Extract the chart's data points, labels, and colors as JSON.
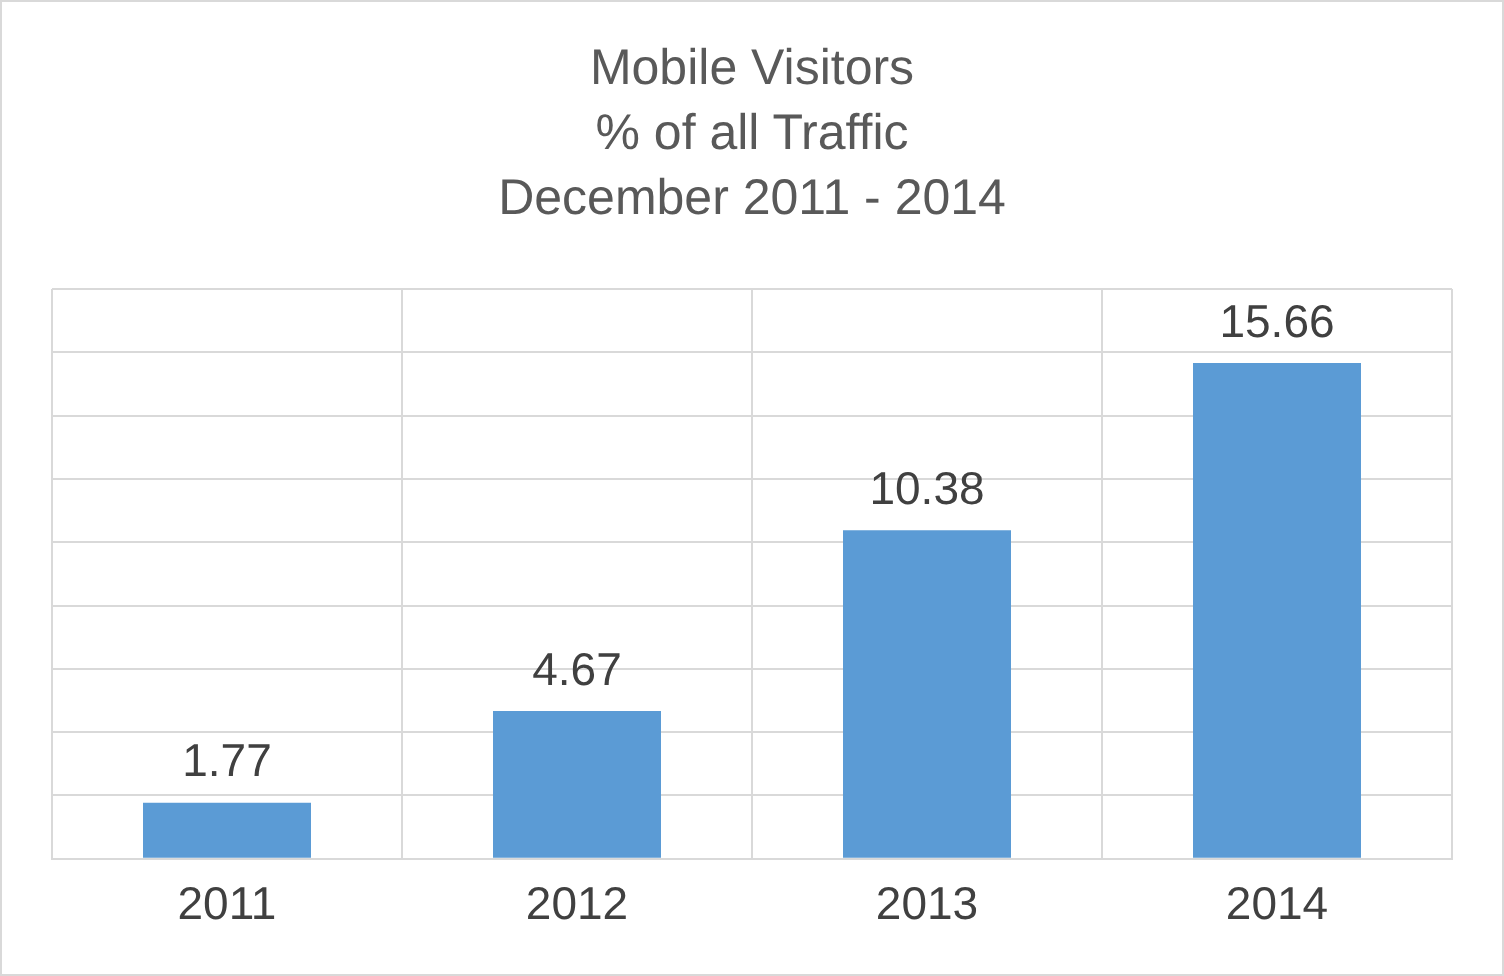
{
  "chart_data": {
    "type": "bar",
    "title": "Mobile Visitors\n% of all Traffic\nDecember 2011 - 2014",
    "categories": [
      "2011",
      "2012",
      "2013",
      "2014"
    ],
    "values": [
      1.77,
      4.67,
      10.38,
      15.66
    ],
    "color": "#5b9bd5",
    "ylim": [
      0,
      18
    ],
    "yticks": [
      {
        "value": 0,
        "label": null
      },
      {
        "value": 2,
        "label": null
      },
      {
        "value": 4,
        "label": null
      },
      {
        "value": 6,
        "label": null
      },
      {
        "value": 8,
        "label": null
      },
      {
        "value": 10,
        "label": null
      },
      {
        "value": 12,
        "label": null
      },
      {
        "value": 14,
        "label": null
      },
      {
        "value": 16,
        "label": null
      },
      {
        "value": 18,
        "label": null
      }
    ],
    "grid": true,
    "data_labels": true,
    "legend": false,
    "tick_labels": "x"
  }
}
